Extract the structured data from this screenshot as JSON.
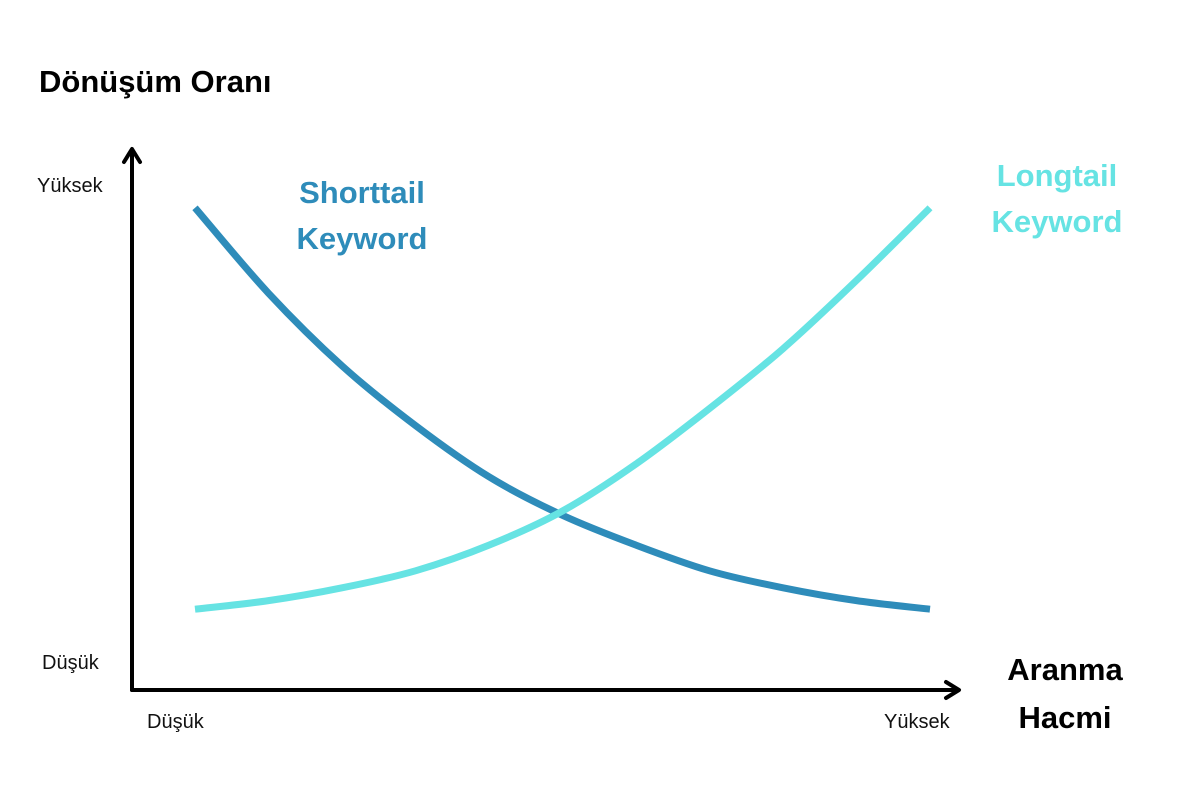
{
  "chart_data": {
    "type": "line",
    "ylabel": "Dönüşüm Oranı",
    "xlabel": "Aranma Hacmi",
    "x_ticks": [
      "Düşük",
      "Yüksek"
    ],
    "y_ticks": [
      "Düşük",
      "Yüksek"
    ],
    "xlim": [
      0,
      1
    ],
    "ylim": [
      0,
      1
    ],
    "series": [
      {
        "name": "Shorttail Keyword",
        "color": "#2e8cba",
        "x": [
          0,
          0.1,
          0.2,
          0.3,
          0.4,
          0.5,
          0.6,
          0.7,
          0.8,
          0.9,
          1.0
        ],
        "y": [
          0.97,
          0.77,
          0.6,
          0.46,
          0.34,
          0.25,
          0.18,
          0.12,
          0.08,
          0.05,
          0.03
        ]
      },
      {
        "name": "Longtail Keyword",
        "color": "#66e3e3",
        "x": [
          0,
          0.1,
          0.2,
          0.3,
          0.4,
          0.5,
          0.6,
          0.7,
          0.8,
          0.9,
          1.0
        ],
        "y": [
          0.03,
          0.05,
          0.08,
          0.12,
          0.18,
          0.26,
          0.37,
          0.5,
          0.64,
          0.8,
          0.97
        ]
      }
    ],
    "grid": false,
    "axis_color": "#000000"
  }
}
